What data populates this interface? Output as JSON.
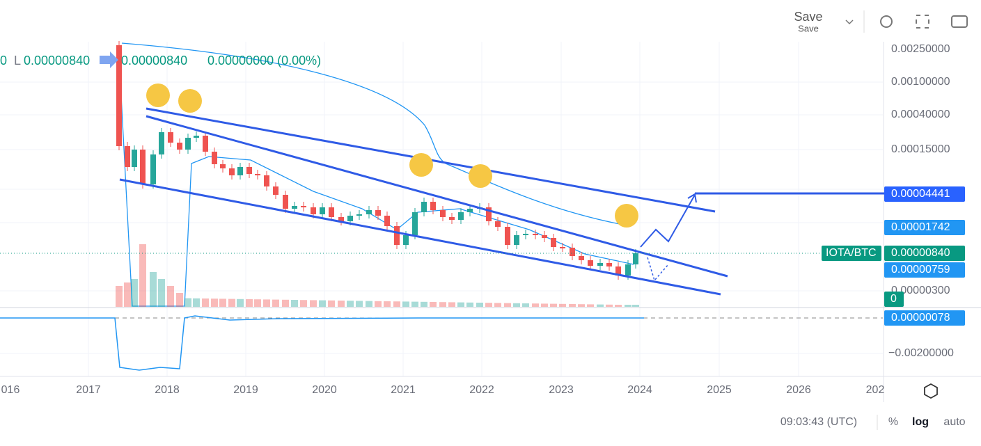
{
  "toolbar": {
    "save": "Save",
    "save_sub": "Save"
  },
  "legend": {
    "open": "0",
    "low_prefix": "L",
    "low": "0.00000840",
    "close": "0.00000840",
    "change": "0.00000000 (0.00%)"
  },
  "price_axis": [
    "0.00250000",
    "0.00100000",
    "0.00040000",
    "0.00015000",
    "0.00000300",
    "−0.00200000"
  ],
  "badges": {
    "target": "0.00004441",
    "upper": "0.00001742",
    "symbol": "IOTA/BTC",
    "last": "0.00000840",
    "lower": "0.00000759",
    "volume": "0",
    "oscillator": "0.00000078"
  },
  "time_axis": [
    "016",
    "2017",
    "2018",
    "2019",
    "2020",
    "2021",
    "2022",
    "2023",
    "2024",
    "2025",
    "2026",
    "202"
  ],
  "status": {
    "time": "09:03:43 (UTC)",
    "percent": "%",
    "log": "log",
    "auto": "auto"
  }
}
